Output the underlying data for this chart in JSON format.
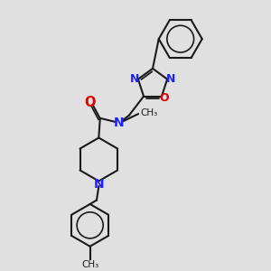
{
  "bg_color": "#e0e0e0",
  "bond_color": "#1a1a1a",
  "n_color": "#2020ff",
  "o_color": "#dd0000",
  "lw": 1.5,
  "figsize": [
    3.0,
    3.0
  ],
  "dpi": 100,
  "xlim": [
    0,
    10
  ],
  "ylim": [
    0,
    10
  ]
}
